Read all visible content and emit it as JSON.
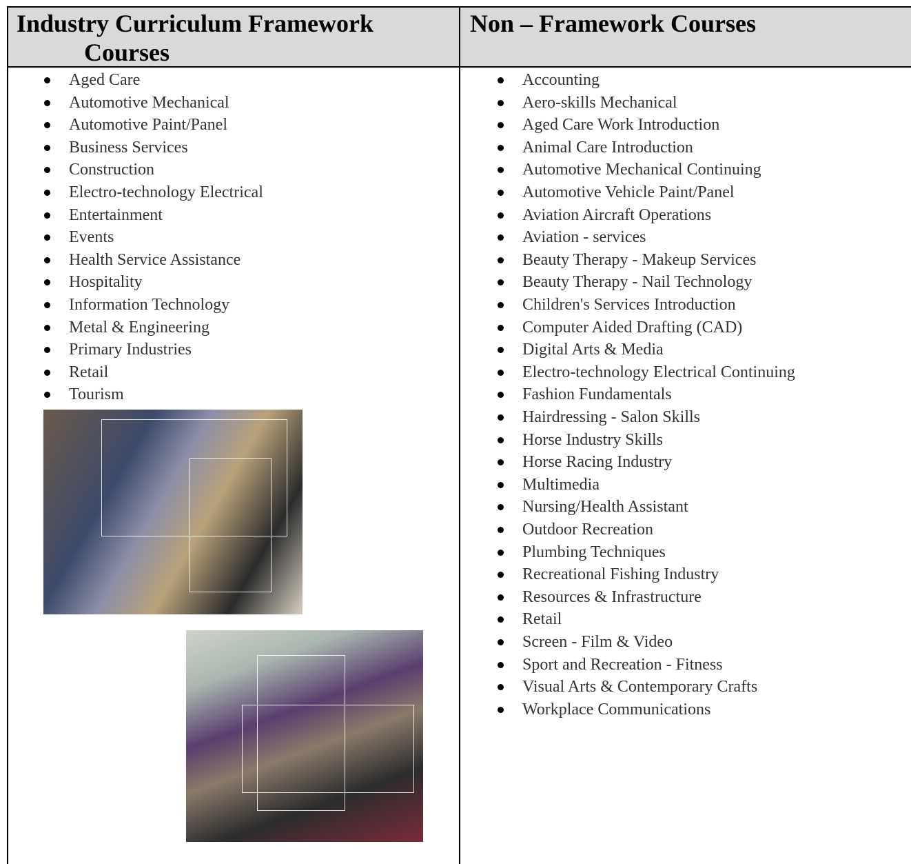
{
  "table": {
    "header": [
      "Industry Curriculum Framework Courses",
      "Non – Framework Courses"
    ],
    "columns": [
      {
        "items": [
          "Aged Care",
          "Automotive Mechanical",
          "Automotive Paint/Panel",
          "Business Services",
          "Construction",
          "Electro-technology Electrical",
          "Entertainment",
          "Events",
          "Health Service Assistance",
          "Hospitality",
          "Information Technology",
          "Metal & Engineering",
          "Primary Industries",
          "Retail",
          "Tourism"
        ]
      },
      {
        "items": [
          "Accounting",
          "Aero-skills Mechanical",
          "Aged Care Work Introduction",
          "Animal Care Introduction",
          "Automotive Mechanical Continuing",
          "Automotive Vehicle Paint/Panel",
          "Aviation Aircraft Operations",
          "Aviation - services",
          "Beauty Therapy - Makeup Services",
          "Beauty Therapy - Nail Technology",
          "Children's Services Introduction",
          "Computer Aided Drafting (CAD)",
          "Digital Arts & Media",
          "Electro-technology Electrical Continuing",
          "Fashion Fundamentals",
          "Hairdressing - Salon Skills",
          "Horse Industry Skills",
          "Horse Racing Industry",
          "Multimedia",
          "Nursing/Health Assistant",
          "Outdoor Recreation",
          "Plumbing Techniques",
          "Recreational Fishing Industry",
          "Resources & Infrastructure",
          "Retail",
          "Screen - Film & Video",
          "Sport and Recreation - Fitness",
          "Visual Arts & Contemporary Crafts",
          "Workplace Communications"
        ]
      }
    ]
  }
}
